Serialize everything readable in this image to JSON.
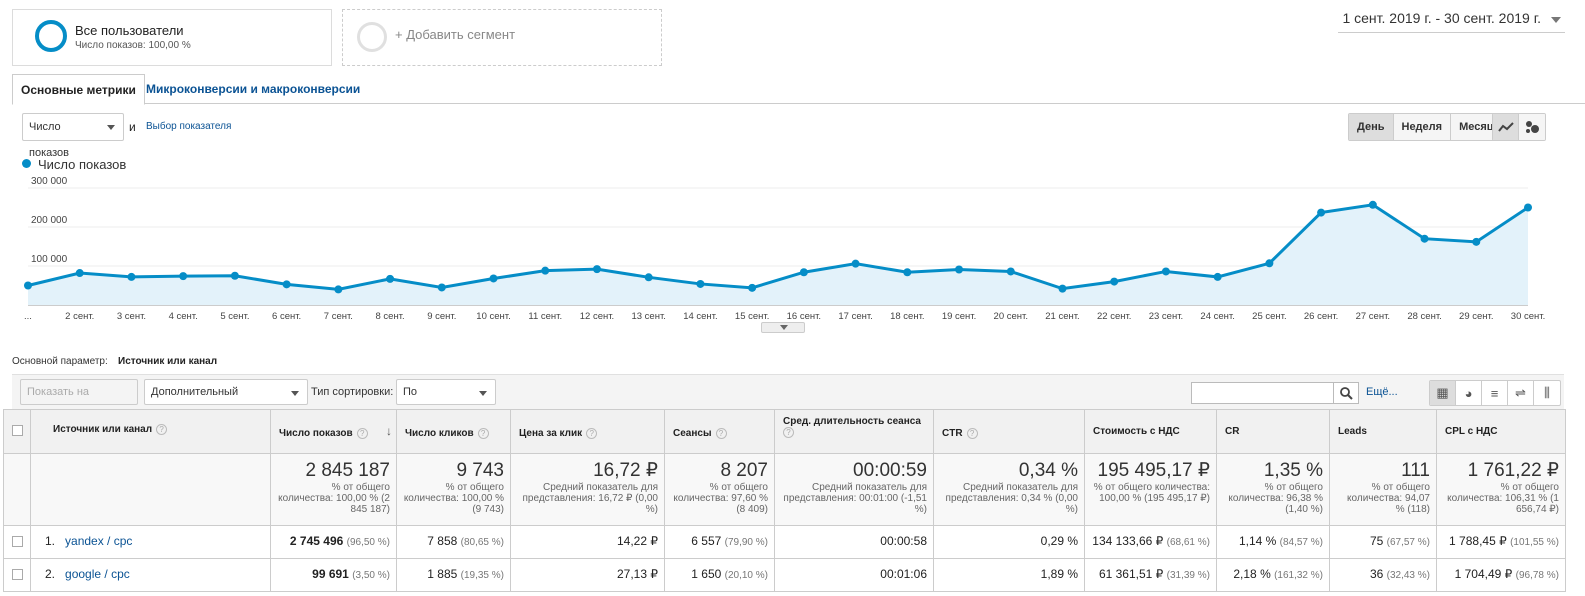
{
  "segments": {
    "all_users_title": "Все пользователи",
    "all_users_sub": "Число показов: 100,00 %",
    "add_segment": "+ Добавить сегмент"
  },
  "date_range": "1 сент. 2019 г. - 30 сент. 2019 г.",
  "tabs": [
    "Основные метрики",
    "Микроконверсии и макроконверсии"
  ],
  "controls": {
    "metric_select": "Число показов",
    "and": "и",
    "choose_metric": "Выбор показателя",
    "period_buttons": [
      "День",
      "Неделя",
      "Месяц"
    ],
    "primary_dim_label": "Основной параметр:",
    "primary_dim_value": "Источник или канал",
    "plot_rows": "Показать на диаграмме",
    "secondary_dim": "Дополнительный параметр",
    "sort_type_label": "Тип сортировки:",
    "sort_type_value": "По умолчанию",
    "more": "Ещё..."
  },
  "colors": {
    "accent": "#058dc7",
    "link": "#0b5394",
    "area": "#e3f2fa"
  },
  "chart_data": {
    "type": "area",
    "series": [
      {
        "name": "Число показов",
        "values": [
          50000,
          82000,
          72000,
          74000,
          75000,
          53000,
          40000,
          67000,
          45000,
          68000,
          88000,
          92000,
          71000,
          54000,
          44000,
          84000,
          106000,
          84000,
          91000,
          86000,
          42000,
          60000,
          86000,
          72000,
          107000,
          237000,
          257000,
          170000,
          162000,
          250000
        ]
      }
    ],
    "categories": [
      "...",
      "2 сент.",
      "3 сент.",
      "4 сент.",
      "5 сент.",
      "6 сент.",
      "7 сент.",
      "8 сент.",
      "9 сент.",
      "10 сент.",
      "11 сент.",
      "12 сент.",
      "13 сент.",
      "14 сент.",
      "15 сент.",
      "16 сент.",
      "17 сент.",
      "18 сент.",
      "19 сент.",
      "20 сент.",
      "21 сент.",
      "22 сент.",
      "23 сент.",
      "24 сент.",
      "25 сент.",
      "26 сент.",
      "27 сент.",
      "28 сент.",
      "29 сент.",
      "30 сент."
    ],
    "y_ticks": [
      "100 000",
      "200 000",
      "300 000"
    ],
    "ylim": [
      0,
      300000
    ]
  },
  "table": {
    "headers": [
      "Источник или канал",
      "Число показов",
      "Число кликов",
      "Цена за клик",
      "Сеансы",
      "Сред. длительность сеанса",
      "CTR",
      "Стоимость с НДС",
      "CR",
      "Leads",
      "CPL с НДС"
    ],
    "totals": [
      {
        "big": "2 845 187",
        "sm": "% от общего количества: 100,00 % (2 845 187)"
      },
      {
        "big": "9 743",
        "sm": "% от общего количества: 100,00 % (9 743)"
      },
      {
        "big": "16,72 ₽",
        "sm": "Средний показатель для представления: 16,72 ₽ (0,00 %)"
      },
      {
        "big": "8 207",
        "sm": "% от общего количества: 97,60 % (8 409)"
      },
      {
        "big": "00:00:59",
        "sm": "Средний показатель для представления: 00:01:00 (-1,51 %)"
      },
      {
        "big": "0,34 %",
        "sm": "Средний показатель для представления: 0,34 % (0,00 %)"
      },
      {
        "big": "195 495,17 ₽",
        "sm": "% от общего количества: 100,00 % (195 495,17 ₽)"
      },
      {
        "big": "1,35 %",
        "sm": "% от общего количества: 96,38 % (1,40 %)"
      },
      {
        "big": "111",
        "sm": "% от общего количества: 94,07 % (118)"
      },
      {
        "big": "1 761,22 ₽",
        "sm": "% от общего количества: 106,31 % (1 656,74 ₽)"
      }
    ],
    "rows": [
      {
        "num": "1.",
        "name": "yandex / cpc",
        "cells": [
          [
            "2 745 496",
            "(96,50 %)"
          ],
          [
            "7 858",
            "(80,65 %)"
          ],
          [
            "14,22 ₽",
            ""
          ],
          [
            "6 557",
            "(79,90 %)"
          ],
          [
            "00:00:58",
            ""
          ],
          [
            "0,29 %",
            ""
          ],
          [
            "134 133,66 ₽",
            "(68,61 %)"
          ],
          [
            "1,14 %",
            "(84,57 %)"
          ],
          [
            "75",
            "(67,57 %)"
          ],
          [
            "1 788,45 ₽",
            "(101,55 %)"
          ]
        ]
      },
      {
        "num": "2.",
        "name": "google / cpc",
        "cells": [
          [
            "99 691",
            "(3,50 %)"
          ],
          [
            "1 885",
            "(19,35 %)"
          ],
          [
            "27,13 ₽",
            ""
          ],
          [
            "1 650",
            "(20,10 %)"
          ],
          [
            "00:01:06",
            ""
          ],
          [
            "1,89 %",
            ""
          ],
          [
            "61 361,51 ₽",
            "(31,39 %)"
          ],
          [
            "2,18 %",
            "(161,32 %)"
          ],
          [
            "36",
            "(32,43 %)"
          ],
          [
            "1 704,49 ₽",
            "(96,78 %)"
          ]
        ]
      }
    ]
  }
}
